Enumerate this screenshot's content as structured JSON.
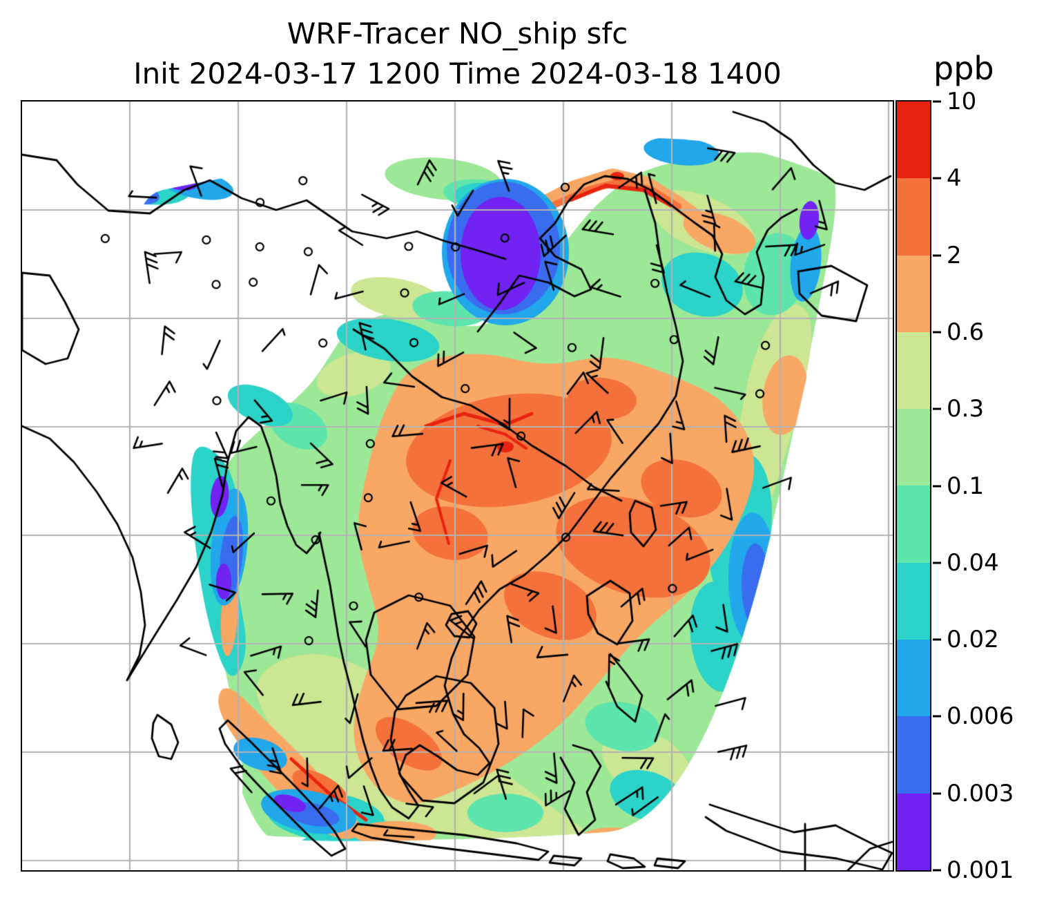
{
  "title": {
    "line1": "WRF-Tracer NO_ship sfc",
    "line2": "Init 2024-03-17 1200 Time 2024-03-18 1400"
  },
  "colorbar": {
    "label": "ppb",
    "tick_labels": [
      "10",
      "4",
      "2",
      "0.6",
      "0.3",
      "0.1",
      "0.04",
      "0.02",
      "0.006",
      "0.003",
      "0.001"
    ],
    "colors_top_to_bottom": [
      "#e82410",
      "#f4713b",
      "#f9a765",
      "#cde693",
      "#9ce897",
      "#5de5ad",
      "#2bd3c8",
      "#21a7ea",
      "#3a6cf0",
      "#7023f3"
    ]
  },
  "chart_data": {
    "type": "heatmap",
    "title": "WRF-Tracer NO_ship sfc",
    "subtitle": "Init 2024-03-17 1200 Time 2024-03-18 1400",
    "variable": "NO_ship",
    "level": "sfc",
    "units": "ppb",
    "init_time": "2024-03-17 1200",
    "valid_time": "2024-03-18 1400",
    "color_levels_ppb": [
      0.001,
      0.003,
      0.006,
      0.02,
      0.04,
      0.1,
      0.3,
      0.6,
      2,
      4,
      10
    ],
    "colorbar_orientation": "vertical-right",
    "grid": true,
    "overlays": [
      "filled tracer concentration contours",
      "coastlines",
      "latitude-longitude gridlines",
      "wind barbs",
      "calm-wind circles"
    ]
  }
}
